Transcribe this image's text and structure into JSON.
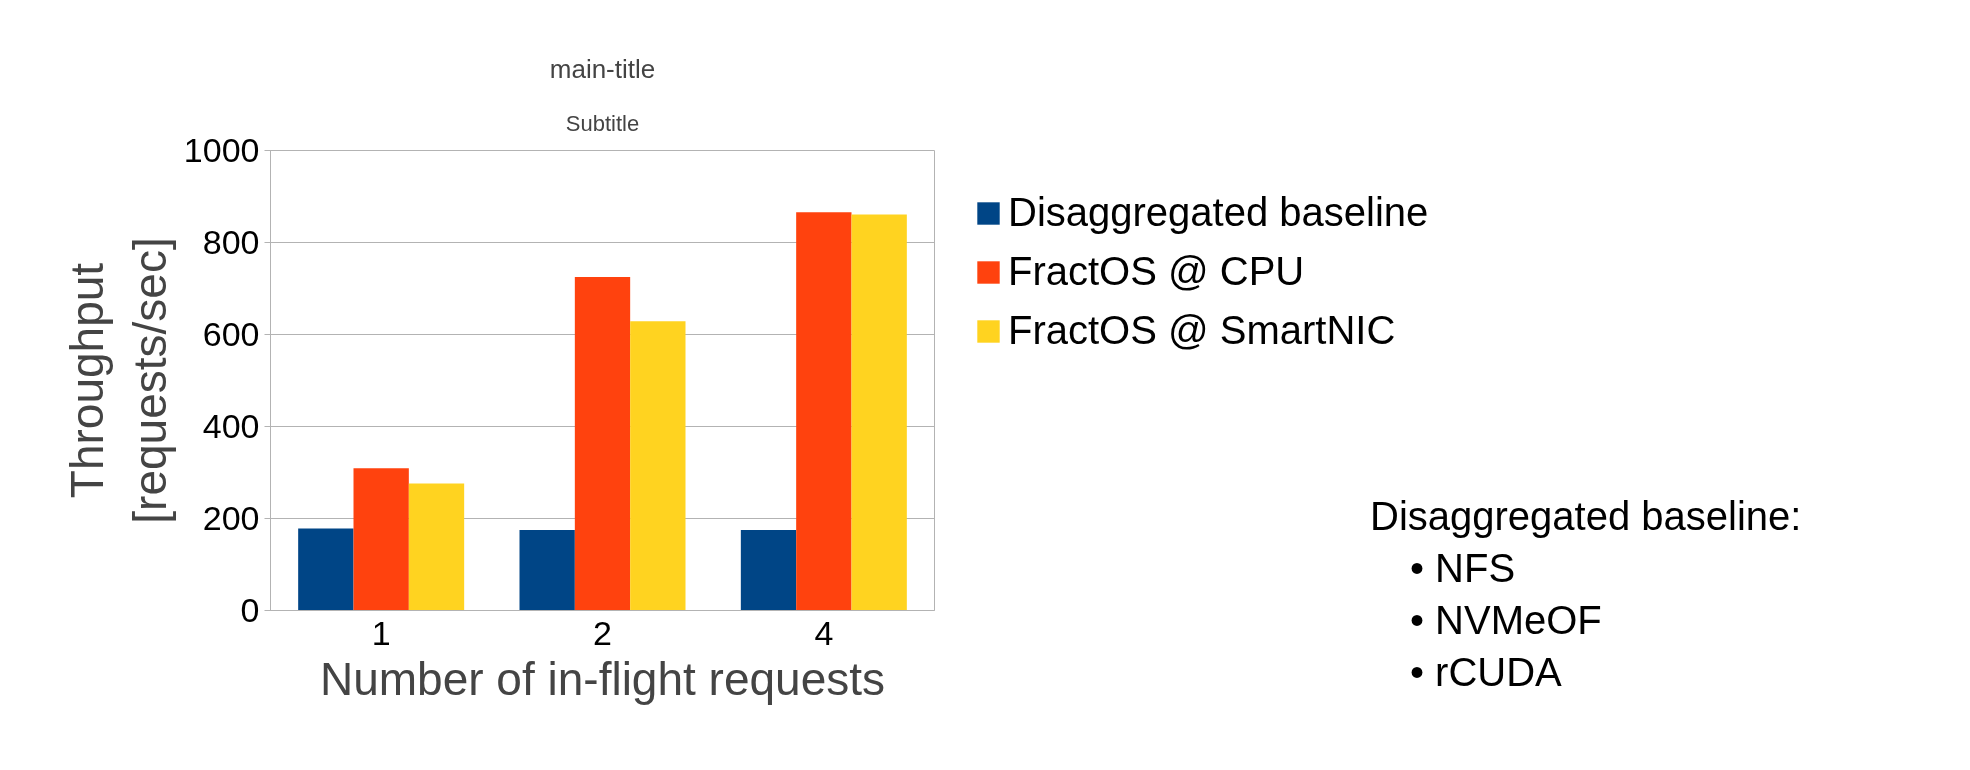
{
  "chart_data": {
    "type": "bar",
    "title": "main-title",
    "subtitle": "Subtitle",
    "xlabel": "Number of in-flight requests",
    "ylabel": "Throughput\n[requests/sec]",
    "categories": [
      "1",
      "2",
      "4"
    ],
    "series": [
      {
        "name": "Disaggregated baseline",
        "color": "#004586",
        "values": [
          178,
          175,
          175
        ]
      },
      {
        "name": "FractOS @ CPU",
        "color": "#ff420e",
        "values": [
          309,
          725,
          866
        ]
      },
      {
        "name": "FractOS @ SmartNIC",
        "color": "#ffd320",
        "values": [
          276,
          629,
          861
        ]
      }
    ],
    "ylim": [
      0,
      1000
    ],
    "yticks": [
      0,
      200,
      400,
      600,
      800,
      1000
    ],
    "grid": "y",
    "legend": "right",
    "annotations": [
      "Disaggregated baseline:",
      "•  NFS",
      "•  NVMeOF",
      "•  rCUDA"
    ]
  }
}
